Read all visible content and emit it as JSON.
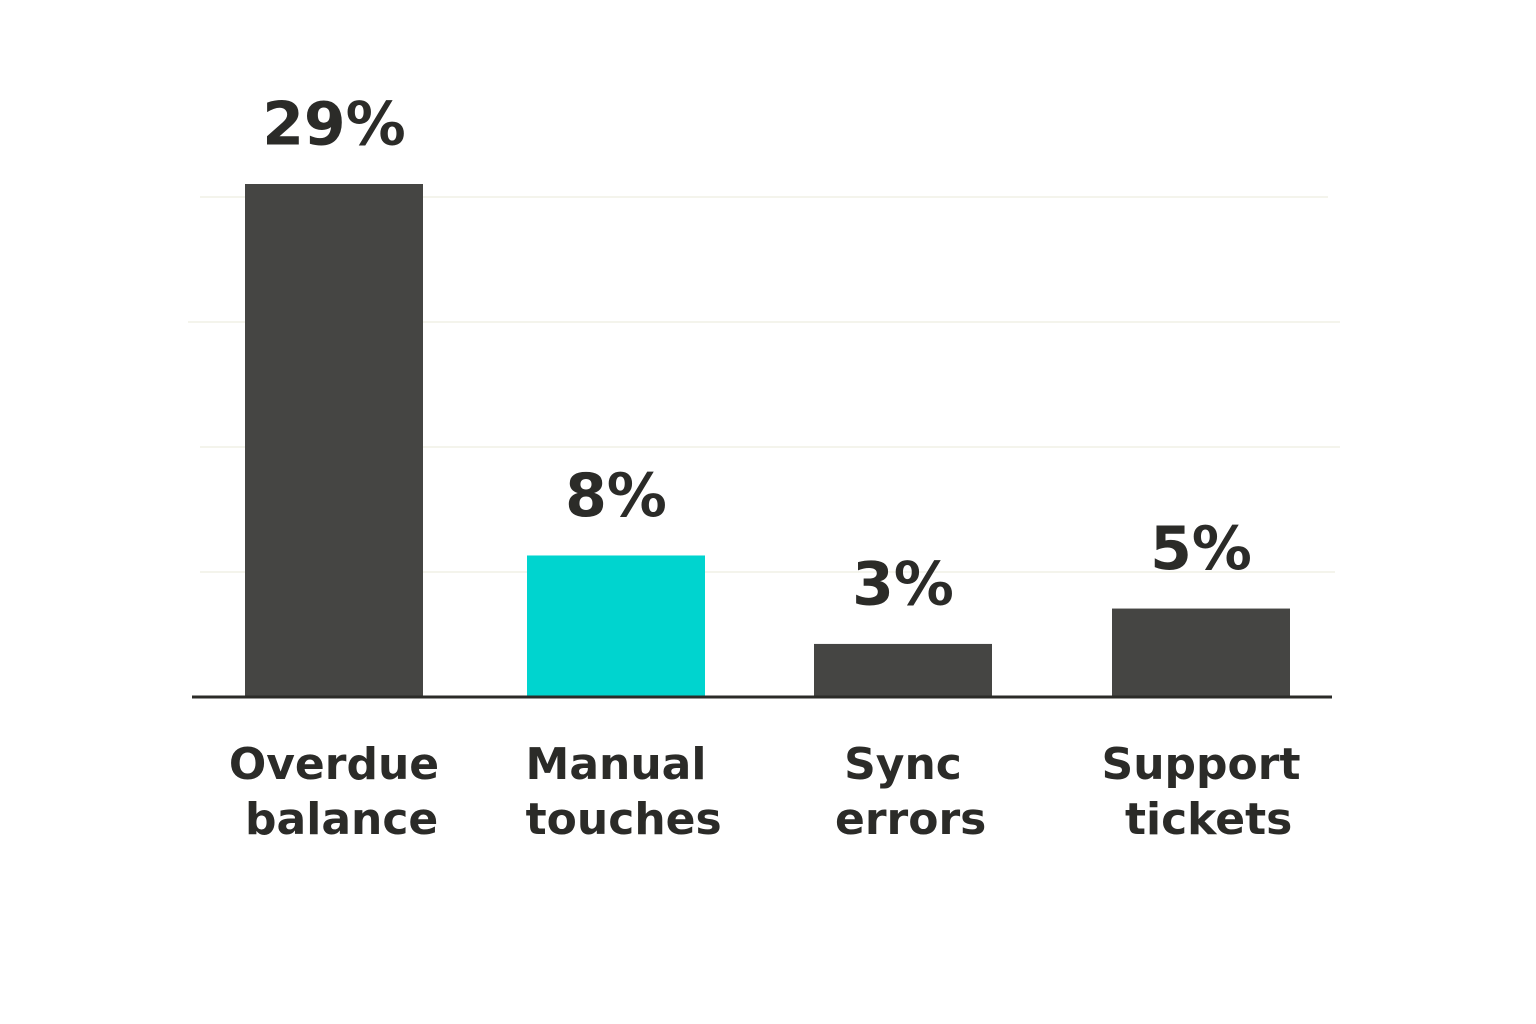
{
  "chart_data": {
    "type": "bar",
    "categories": [
      "Overdue balance",
      "Manual touches",
      "Sync errors",
      "Support tickets"
    ],
    "values": [
      29,
      8,
      3,
      5
    ],
    "value_labels": [
      "29%",
      "8%",
      "3%",
      "5%"
    ],
    "colors": [
      "#454543",
      "#00d4cf",
      "#454543",
      "#454543"
    ],
    "ylim": [
      0,
      30
    ]
  }
}
